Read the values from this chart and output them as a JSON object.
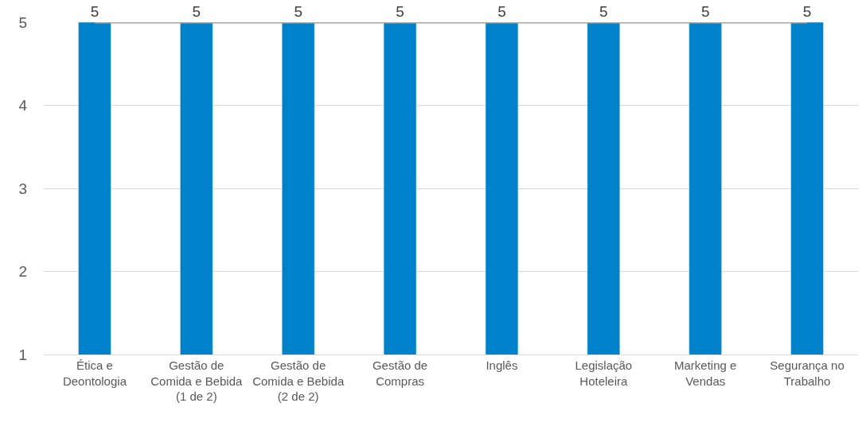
{
  "chart_data": {
    "type": "bar",
    "categories": [
      "Ética e\nDeontologia",
      "Gestão de\nComida e Bebida\n(1 de 2)",
      "Gestão de\nComida e Bebida\n(2 de 2)",
      "Gestão de\nCompras",
      "Inglês",
      "Legislação\nHoteleira",
      "Marketing e\nVendas",
      "Segurança no\nTrabalho"
    ],
    "series": [
      {
        "color": "#0082ca",
        "values": [
          5,
          5,
          5,
          5,
          5,
          5,
          5,
          5
        ],
        "data_labels": true
      },
      {
        "type": "line",
        "color": "#a5a5a5",
        "values": [
          5,
          5,
          5,
          5,
          5,
          5,
          5,
          5
        ],
        "marker": "none",
        "line_style": "solid"
      }
    ],
    "ylim": [
      1,
      5
    ],
    "yticks": [
      1,
      2,
      3,
      4,
      5
    ],
    "grid": "y",
    "legend": false
  }
}
